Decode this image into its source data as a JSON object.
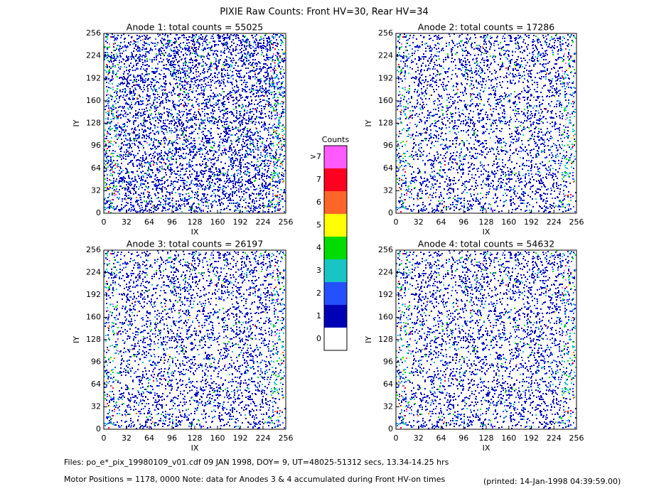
{
  "title": "PIXIE Raw Counts:  Front HV=30, Rear HV=34",
  "panels": [
    {
      "title": "Anode 1: total counts = 55025",
      "xlabel": "IX",
      "ylabel": "IY",
      "xlim": [
        0,
        256
      ],
      "ylim": [
        0,
        256
      ],
      "xticks": [
        0,
        32,
        64,
        96,
        128,
        160,
        192,
        224,
        256
      ],
      "yticks": [
        0,
        32,
        64,
        96,
        128,
        160,
        192,
        224,
        256
      ]
    },
    {
      "title": "Anode 2: total counts = 17286",
      "xlabel": "IX",
      "ylabel": "IY",
      "xlim": [
        0,
        256
      ],
      "ylim": [
        0,
        256
      ],
      "xticks": [
        0,
        32,
        64,
        96,
        128,
        160,
        192,
        224,
        256
      ],
      "yticks": [
        0,
        32,
        64,
        96,
        128,
        160,
        192,
        224,
        256
      ]
    },
    {
      "title": "Anode 3: total counts = 26197",
      "xlabel": "IX",
      "ylabel": "IY",
      "xlim": [
        0,
        256
      ],
      "ylim": [
        0,
        256
      ],
      "xticks": [
        0,
        32,
        64,
        96,
        128,
        160,
        192,
        224,
        256
      ],
      "yticks": [
        0,
        32,
        64,
        96,
        128,
        160,
        192,
        224,
        256
      ]
    },
    {
      "title": "Anode 4: total counts = 54632",
      "xlabel": "IX",
      "ylabel": "IY",
      "xlim": [
        0,
        256
      ],
      "ylim": [
        0,
        256
      ],
      "xticks": [
        0,
        32,
        64,
        96,
        128,
        160,
        192,
        224,
        256
      ],
      "yticks": [
        0,
        32,
        64,
        96,
        128,
        160,
        192,
        224,
        256
      ]
    }
  ],
  "colorbar": {
    "title": "Counts",
    "labels": [
      "0",
      "1",
      "2",
      "3",
      "4",
      "5",
      "6",
      "7",
      ">7"
    ],
    "colors": [
      "#ffffff",
      "#0000b4",
      "#2450ff",
      "#18c4c4",
      "#00dc00",
      "#ffff00",
      "#ff6428",
      "#ff0020",
      "#ff5aff"
    ]
  },
  "footer": {
    "files": "Files: po_e*_pix_19980109_v01.cdf    09 JAN 1998, DOY=  9, UT=48025-51312 secs, 13.34-14.25 hrs",
    "motor": "Motor Positions = 1178, 0000   Note: data for Anodes 3 & 4 accumulated during Front HV-on times",
    "printed": "(printed: 14-Jan-1998 04:39:59.00)"
  }
}
